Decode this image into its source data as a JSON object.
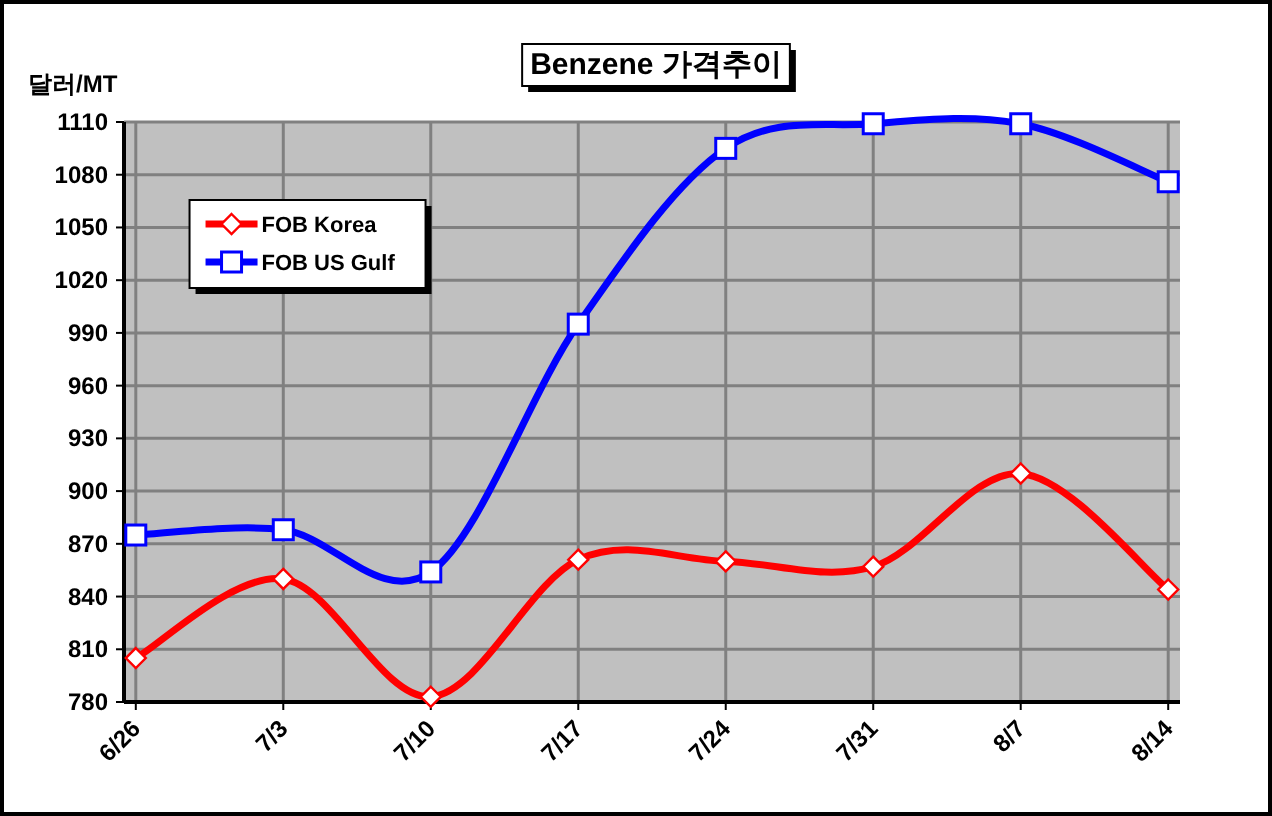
{
  "chart_data": {
    "type": "line",
    "title": "Benzene 가격추이",
    "ylabel": "달러/MT",
    "categories": [
      "6/26",
      "7/3",
      "7/10",
      "7/17",
      "7/24",
      "7/31",
      "8/7",
      "8/14"
    ],
    "series": [
      {
        "name": "FOB Korea",
        "color": "#ff0000",
        "marker": "diamond",
        "values": [
          805,
          850,
          783,
          861,
          860,
          857,
          910,
          844
        ]
      },
      {
        "name": "FOB US Gulf",
        "color": "#0000ff",
        "marker": "square",
        "values": [
          875,
          878,
          854,
          995,
          1095,
          1109,
          1109,
          1076
        ]
      }
    ],
    "ylim": [
      780,
      1110
    ],
    "yticks": [
      780,
      810,
      840,
      870,
      900,
      930,
      960,
      990,
      1020,
      1050,
      1080,
      1110
    ],
    "grid": true,
    "legend": "top left",
    "line_style": "solid"
  }
}
